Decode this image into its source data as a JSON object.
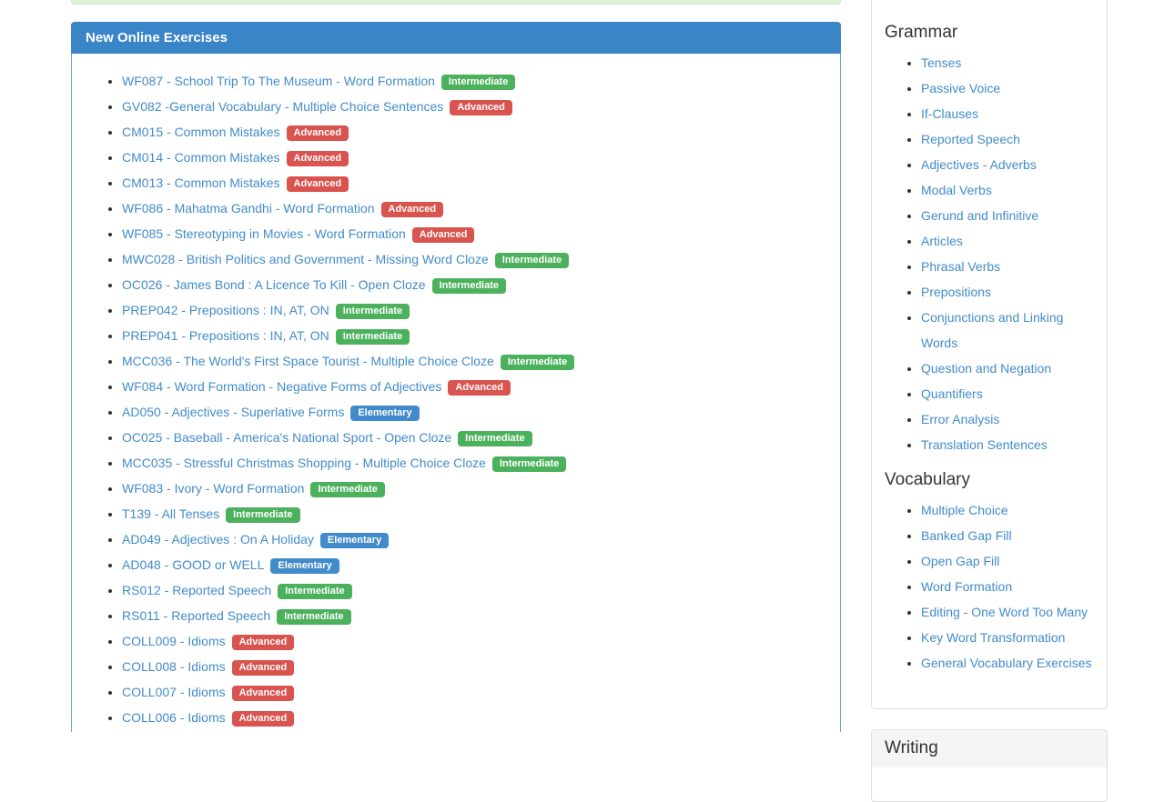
{
  "colors": {
    "header_blue": "#3a85c8",
    "panel_border_blue": "#6aa3d8",
    "link_blue": "#428bca",
    "green_strip_bg": "#dff0d8",
    "green_strip_border": "#c8e5bc",
    "grey_heading_bg": "#f5f5f5"
  },
  "badge_colors": {
    "Intermediate": "#4cb15c",
    "Advanced": "#d9534f",
    "Elementary": "#428bca"
  },
  "main_panel": {
    "title": "New Online Exercises",
    "exercises": [
      {
        "label": "WF087 - School Trip To The Museum - Word Formation",
        "level": "Intermediate"
      },
      {
        "label": "GV082 -General Vocabulary - Multiple Choice Sentences",
        "level": "Advanced"
      },
      {
        "label": "CM015 - Common Mistakes",
        "level": "Advanced"
      },
      {
        "label": "CM014 - Common Mistakes",
        "level": "Advanced"
      },
      {
        "label": "CM013 - Common Mistakes",
        "level": "Advanced"
      },
      {
        "label": "WF086 - Mahatma Gandhi - Word Formation",
        "level": "Advanced"
      },
      {
        "label": "WF085 - Stereotyping in Movies - Word Formation",
        "level": "Advanced"
      },
      {
        "label": "MWC028 - British Politics and Government - Missing Word Cloze",
        "level": "Intermediate"
      },
      {
        "label": "OC026 - James Bond : A Licence To Kill - Open Cloze",
        "level": "Intermediate"
      },
      {
        "label": "PREP042 - Prepositions : IN, AT, ON",
        "level": "Intermediate"
      },
      {
        "label": "PREP041 - Prepositions : IN, AT, ON",
        "level": "Intermediate"
      },
      {
        "label": "MCC036 - The World's First Space Tourist - Multiple Choice Cloze",
        "level": "Intermediate"
      },
      {
        "label": "WF084 - Word Formation - Negative Forms of Adjectives",
        "level": "Advanced"
      },
      {
        "label": "AD050 - Adjectives - Superlative Forms",
        "level": "Elementary"
      },
      {
        "label": "OC025 - Baseball - America's National Sport - Open Cloze",
        "level": "Intermediate"
      },
      {
        "label": "MCC035 - Stressful Christmas Shopping - Multiple Choice Cloze",
        "level": "Intermediate"
      },
      {
        "label": "WF083 - Ivory - Word Formation",
        "level": "Intermediate"
      },
      {
        "label": "T139 - All Tenses",
        "level": "Intermediate"
      },
      {
        "label": "AD049 - Adjectives : On A Holiday",
        "level": "Elementary"
      },
      {
        "label": "AD048 - GOOD or WELL",
        "level": "Elementary"
      },
      {
        "label": "RS012 - Reported Speech",
        "level": "Intermediate"
      },
      {
        "label": "RS011 - Reported Speech",
        "level": "Intermediate"
      },
      {
        "label": "COLL009 - Idioms",
        "level": "Advanced"
      },
      {
        "label": "COLL008 - Idioms",
        "level": "Advanced"
      },
      {
        "label": "COLL007 - Idioms",
        "level": "Advanced"
      },
      {
        "label": "COLL006 - Idioms",
        "level": "Advanced"
      }
    ]
  },
  "sidebar": {
    "sections": [
      {
        "title": "Grammar",
        "items": [
          "Tenses",
          "Passive Voice",
          "If-Clauses",
          "Reported Speech",
          "Adjectives - Adverbs",
          "Modal Verbs",
          "Gerund and Infinitive",
          "Articles",
          "Phrasal Verbs",
          "Prepositions",
          "Conjunctions and Linking Words",
          "Question and Negation",
          "Quantifiers",
          "Error Analysis",
          "Translation Sentences"
        ]
      },
      {
        "title": "Vocabulary",
        "items": [
          "Multiple Choice",
          "Banked Gap Fill",
          "Open Gap Fill",
          "Word Formation",
          "Editing - One Word Too Many",
          "Key Word Transformation",
          "General Vocabulary Exercises"
        ]
      }
    ],
    "writing_title": "Writing"
  }
}
